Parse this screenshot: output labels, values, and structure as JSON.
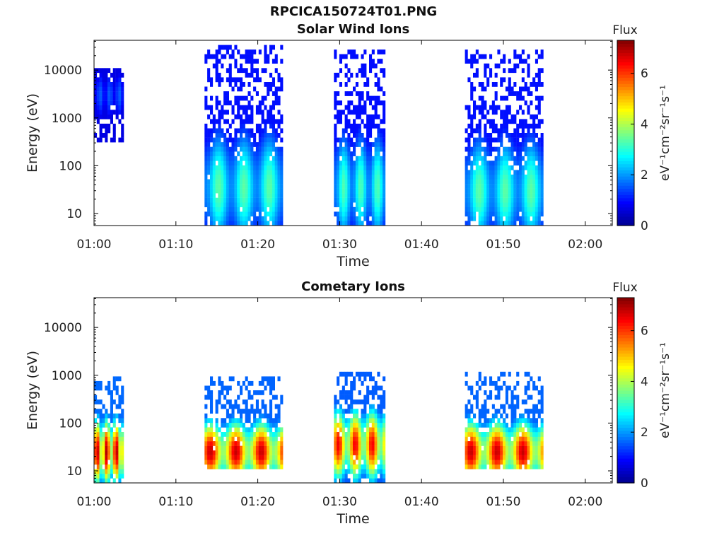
{
  "figure": {
    "title": "RPCICA150724T01.PNG"
  },
  "colorscale": {
    "name": "jet",
    "colors": [
      "#00008f",
      "#0000ff",
      "#0080ff",
      "#00ffff",
      "#80ff80",
      "#ffff00",
      "#ff8000",
      "#ff0000",
      "#800000"
    ]
  },
  "chart_data": [
    {
      "type": "heatmap",
      "title": "Solar Wind Ions",
      "xlabel": "Time",
      "ylabel": "Energy (eV)",
      "x_tick_labels": [
        "01:00",
        "01:10",
        "01:20",
        "01:30",
        "01:40",
        "01:50",
        "02:00"
      ],
      "x_tick_values_min": [
        0,
        10,
        20,
        30,
        40,
        50,
        60
      ],
      "xlim_min": [
        0,
        63.3
      ],
      "y_tick_labels": [
        "10",
        "100",
        "1000",
        "10000"
      ],
      "y_tick_values": [
        10,
        100,
        1000,
        10000
      ],
      "ylim": [
        5.6,
        42000
      ],
      "yscale": "log",
      "colorbar": {
        "title": "Flux",
        "label": "eV⁻¹cm⁻²sr⁻¹s⁻¹",
        "tick_labels": [
          "0",
          "2",
          "4",
          "6"
        ],
        "tick_values": [
          0,
          2,
          4,
          6
        ],
        "range": [
          0,
          7.3
        ]
      },
      "bursts": [
        {
          "t_start_min": 0.0,
          "t_end_min": 3.5,
          "e_min_eV": 300,
          "e_max_eV": 12000,
          "peak_energy_eV": 3000,
          "peak_flux": 1.6
        },
        {
          "t_start_min": 13.5,
          "t_end_min": 22.8,
          "e_min_eV": 6,
          "e_max_eV": 35000,
          "peak_energy_eV": 35,
          "peak_flux": 3.4
        },
        {
          "t_start_min": 29.3,
          "t_end_min": 35.5,
          "e_min_eV": 6,
          "e_max_eV": 25000,
          "peak_energy_eV": 35,
          "peak_flux": 3.3
        },
        {
          "t_start_min": 45.3,
          "t_end_min": 54.8,
          "e_min_eV": 6,
          "e_max_eV": 25000,
          "peak_energy_eV": 30,
          "peak_flux": 3.4
        }
      ]
    },
    {
      "type": "heatmap",
      "title": "Cometary Ions",
      "xlabel": "Time",
      "ylabel": "Energy (eV)",
      "x_tick_labels": [
        "01:00",
        "01:10",
        "01:20",
        "01:30",
        "01:40",
        "01:50",
        "02:00"
      ],
      "x_tick_values_min": [
        0,
        10,
        20,
        30,
        40,
        50,
        60
      ],
      "xlim_min": [
        0,
        63.3
      ],
      "y_tick_labels": [
        "10",
        "100",
        "1000",
        "10000"
      ],
      "y_tick_values": [
        10,
        100,
        1000,
        10000
      ],
      "ylim": [
        5.6,
        42000
      ],
      "yscale": "log",
      "colorbar": {
        "title": "Flux",
        "label": "eV⁻¹cm⁻²sr⁻¹s⁻¹",
        "tick_labels": [
          "0",
          "2",
          "4",
          "6"
        ],
        "tick_values": [
          0,
          2,
          4,
          6
        ],
        "range": [
          0,
          7.3
        ]
      },
      "bursts": [
        {
          "t_start_min": 0.0,
          "t_end_min": 3.5,
          "e_min_eV": 6,
          "e_max_eV": 900,
          "peak_energy_eV": 25,
          "peak_flux": 7.0
        },
        {
          "t_start_min": 13.5,
          "t_end_min": 22.8,
          "e_min_eV": 10,
          "e_max_eV": 1000,
          "peak_energy_eV": 25,
          "peak_flux": 6.8
        },
        {
          "t_start_min": 29.3,
          "t_end_min": 35.5,
          "e_min_eV": 6,
          "e_max_eV": 1200,
          "peak_energy_eV": 35,
          "peak_flux": 6.5
        },
        {
          "t_start_min": 45.3,
          "t_end_min": 54.8,
          "e_min_eV": 10,
          "e_max_eV": 1100,
          "peak_energy_eV": 25,
          "peak_flux": 6.8
        }
      ]
    }
  ]
}
